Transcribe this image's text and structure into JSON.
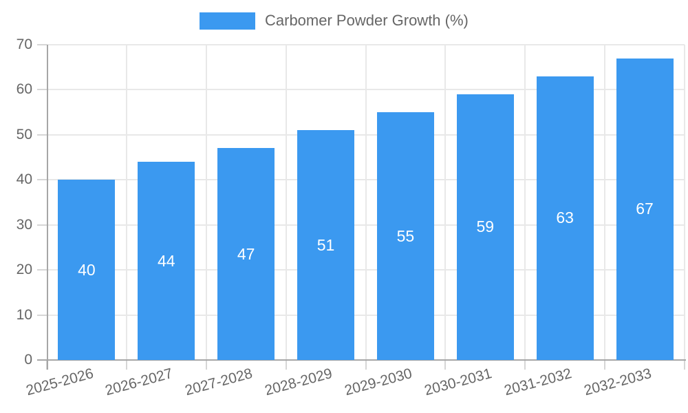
{
  "legend": {
    "label": "Carbomer Powder Growth (%)"
  },
  "colors": {
    "bar": "#3b99f0",
    "grid": "#e8e8e8",
    "axis": "#a6a6a6",
    "tick_mark": "#d6d6d6",
    "text": "#666666",
    "value_label": "#ffffff",
    "background": "#ffffff"
  },
  "chart_data": {
    "type": "bar",
    "title": "",
    "xlabel": "",
    "ylabel": "",
    "categories": [
      "2025-2026",
      "2026-2027",
      "2027-2028",
      "2028-2029",
      "2029-2030",
      "2030-2031",
      "2031-2032",
      "2032-2033"
    ],
    "series": [
      {
        "name": "Carbomer Powder Growth (%)",
        "values": [
          40,
          44,
          47,
          51,
          55,
          59,
          63,
          67
        ]
      }
    ],
    "ylim": [
      0,
      70
    ],
    "ytick_step": 10,
    "ytick_labels": [
      "0",
      "10",
      "20",
      "30",
      "40",
      "50",
      "60",
      "70"
    ],
    "grid": true,
    "legend_position": "top",
    "value_labels": "inside-center",
    "x_tick_rotation_deg": -15
  }
}
